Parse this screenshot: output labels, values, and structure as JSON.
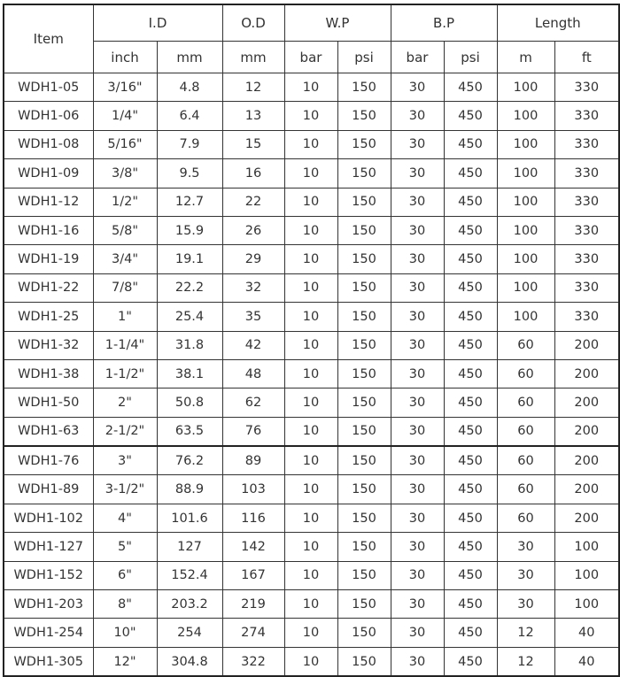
{
  "header": {
    "item": "Item",
    "id": "I.D",
    "od": "O.D",
    "wp": "W.P",
    "bp": "B.P",
    "length": "Length",
    "units": [
      "inch",
      "mm",
      "mm",
      "bar",
      "psi",
      "bar",
      "psi",
      "m",
      "ft"
    ]
  },
  "rows": [
    [
      "WDH1-05",
      "3/16\"",
      "4.8",
      "12",
      "10",
      "150",
      "30",
      "450",
      "100",
      "330"
    ],
    [
      "WDH1-06",
      "1/4\"",
      "6.4",
      "13",
      "10",
      "150",
      "30",
      "450",
      "100",
      "330"
    ],
    [
      "WDH1-08",
      "5/16\"",
      "7.9",
      "15",
      "10",
      "150",
      "30",
      "450",
      "100",
      "330"
    ],
    [
      "WDH1-09",
      "3/8\"",
      "9.5",
      "16",
      "10",
      "150",
      "30",
      "450",
      "100",
      "330"
    ],
    [
      "WDH1-12",
      "1/2\"",
      "12.7",
      "22",
      "10",
      "150",
      "30",
      "450",
      "100",
      "330"
    ],
    [
      "WDH1-16",
      "5/8\"",
      "15.9",
      "26",
      "10",
      "150",
      "30",
      "450",
      "100",
      "330"
    ],
    [
      "WDH1-19",
      "3/4\"",
      "19.1",
      "29",
      "10",
      "150",
      "30",
      "450",
      "100",
      "330"
    ],
    [
      "WDH1-22",
      "7/8\"",
      "22.2",
      "32",
      "10",
      "150",
      "30",
      "450",
      "100",
      "330"
    ],
    [
      "WDH1-25",
      "1\"",
      "25.4",
      "35",
      "10",
      "150",
      "30",
      "450",
      "100",
      "330"
    ],
    [
      "WDH1-32",
      "1-1/4\"",
      "31.8",
      "42",
      "10",
      "150",
      "30",
      "450",
      "60",
      "200"
    ],
    [
      "WDH1-38",
      "1-1/2\"",
      "38.1",
      "48",
      "10",
      "150",
      "30",
      "450",
      "60",
      "200"
    ],
    [
      "WDH1-50",
      "2\"",
      "50.8",
      "62",
      "10",
      "150",
      "30",
      "450",
      "60",
      "200"
    ],
    [
      "WDH1-63",
      "2-1/2\"",
      "63.5",
      "76",
      "10",
      "150",
      "30",
      "450",
      "60",
      "200"
    ],
    [
      "WDH1-76",
      "3\"",
      "76.2",
      "89",
      "10",
      "150",
      "30",
      "450",
      "60",
      "200"
    ],
    [
      "WDH1-89",
      "3-1/2\"",
      "88.9",
      "103",
      "10",
      "150",
      "30",
      "450",
      "60",
      "200"
    ],
    [
      "WDH1-102",
      "4\"",
      "101.6",
      "116",
      "10",
      "150",
      "30",
      "450",
      "60",
      "200"
    ],
    [
      "WDH1-127",
      "5\"",
      "127",
      "142",
      "10",
      "150",
      "30",
      "450",
      "30",
      "100"
    ],
    [
      "WDH1-152",
      "6\"",
      "152.4",
      "167",
      "10",
      "150",
      "30",
      "450",
      "30",
      "100"
    ],
    [
      "WDH1-203",
      "8\"",
      "203.2",
      "219",
      "10",
      "150",
      "30",
      "450",
      "30",
      "100"
    ],
    [
      "WDH1-254",
      "10\"",
      "254",
      "274",
      "10",
      "150",
      "30",
      "450",
      "12",
      "40"
    ],
    [
      "WDH1-305",
      "12\"",
      "304.8",
      "322",
      "10",
      "150",
      "30",
      "450",
      "12",
      "40"
    ]
  ]
}
